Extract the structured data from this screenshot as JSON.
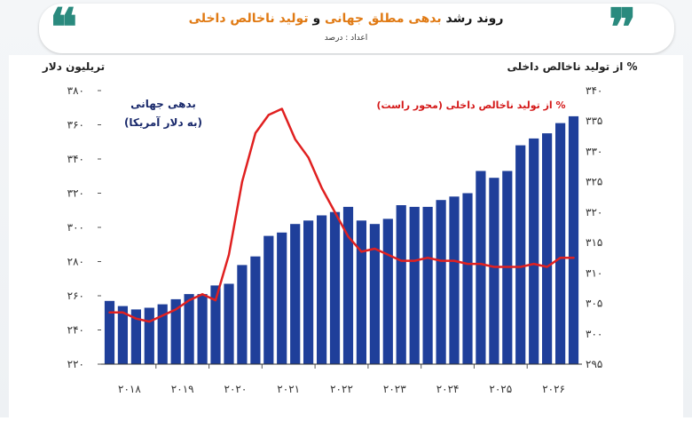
{
  "header": {
    "title_prefix": "روند رشد",
    "title_highlight1": "بدهی مطلق جهانی",
    "title_mid": "و",
    "title_highlight2": "تولید ناخالص داخلی",
    "subtitle": "اعداد : درصد",
    "quote_left": "❝",
    "quote_right": "❞"
  },
  "colors": {
    "bar": "#1f3f9a",
    "line": "#e02020",
    "accent": "#e07a14",
    "quote": "#2a8a7e"
  },
  "chart_data": {
    "type": "bar",
    "left_axis_label": "تریلیون دلار",
    "right_axis_label": "% از تولید ناخالص داخلی",
    "left_ticks": [
      "۳۸۰",
      "۳۶۰",
      "۳۴۰",
      "۳۲۰",
      "۳۰۰",
      "۲۸۰",
      "۲۶۰",
      "۲۴۰",
      "۲۲۰"
    ],
    "right_ticks": [
      "۳۴۰",
      "۳۳۵",
      "۳۳۰",
      "۳۲۵",
      "۳۲۰",
      "۳۱۵",
      "۳۱۰",
      "۳۰۵",
      "۳۰۰",
      "۲۹۵"
    ],
    "x_labels": [
      "۲۰۱۸",
      "۲۰۱۹",
      "۲۰۲۰",
      "۲۰۲۱",
      "۲۰۲۲",
      "۲۰۲۳",
      "۲۰۲۴",
      "۲۰۲۵",
      "۲۰۲۶"
    ],
    "ylim_left": [
      220,
      380
    ],
    "ylim_right": [
      295,
      340
    ],
    "grid": false,
    "legend_bar": {
      "line1": "بدهی جهانی",
      "line2": "(به دلار آمریکا)"
    },
    "legend_line": "% از تولید ناخالص داخلی (محور راست)",
    "series": [
      {
        "kind": "bar",
        "values": [
          257,
          254,
          252,
          253,
          255,
          258,
          261,
          261,
          266,
          267,
          278,
          283,
          295,
          297,
          302,
          304,
          307,
          309,
          312,
          304,
          302,
          305,
          313,
          312,
          312,
          316,
          318,
          320,
          333,
          329,
          333,
          348,
          352,
          355,
          361,
          365
        ]
      },
      {
        "kind": "line",
        "values": [
          303.5,
          303.5,
          302.5,
          302,
          303,
          304,
          305.5,
          306.5,
          305.5,
          313,
          325,
          333,
          336,
          337,
          332,
          329,
          324,
          320,
          316,
          313.5,
          314,
          313,
          312,
          312,
          312.5,
          312,
          312,
          311.5,
          311.5,
          311,
          311,
          311,
          311.5,
          311,
          312.5,
          312.5
        ]
      }
    ]
  }
}
